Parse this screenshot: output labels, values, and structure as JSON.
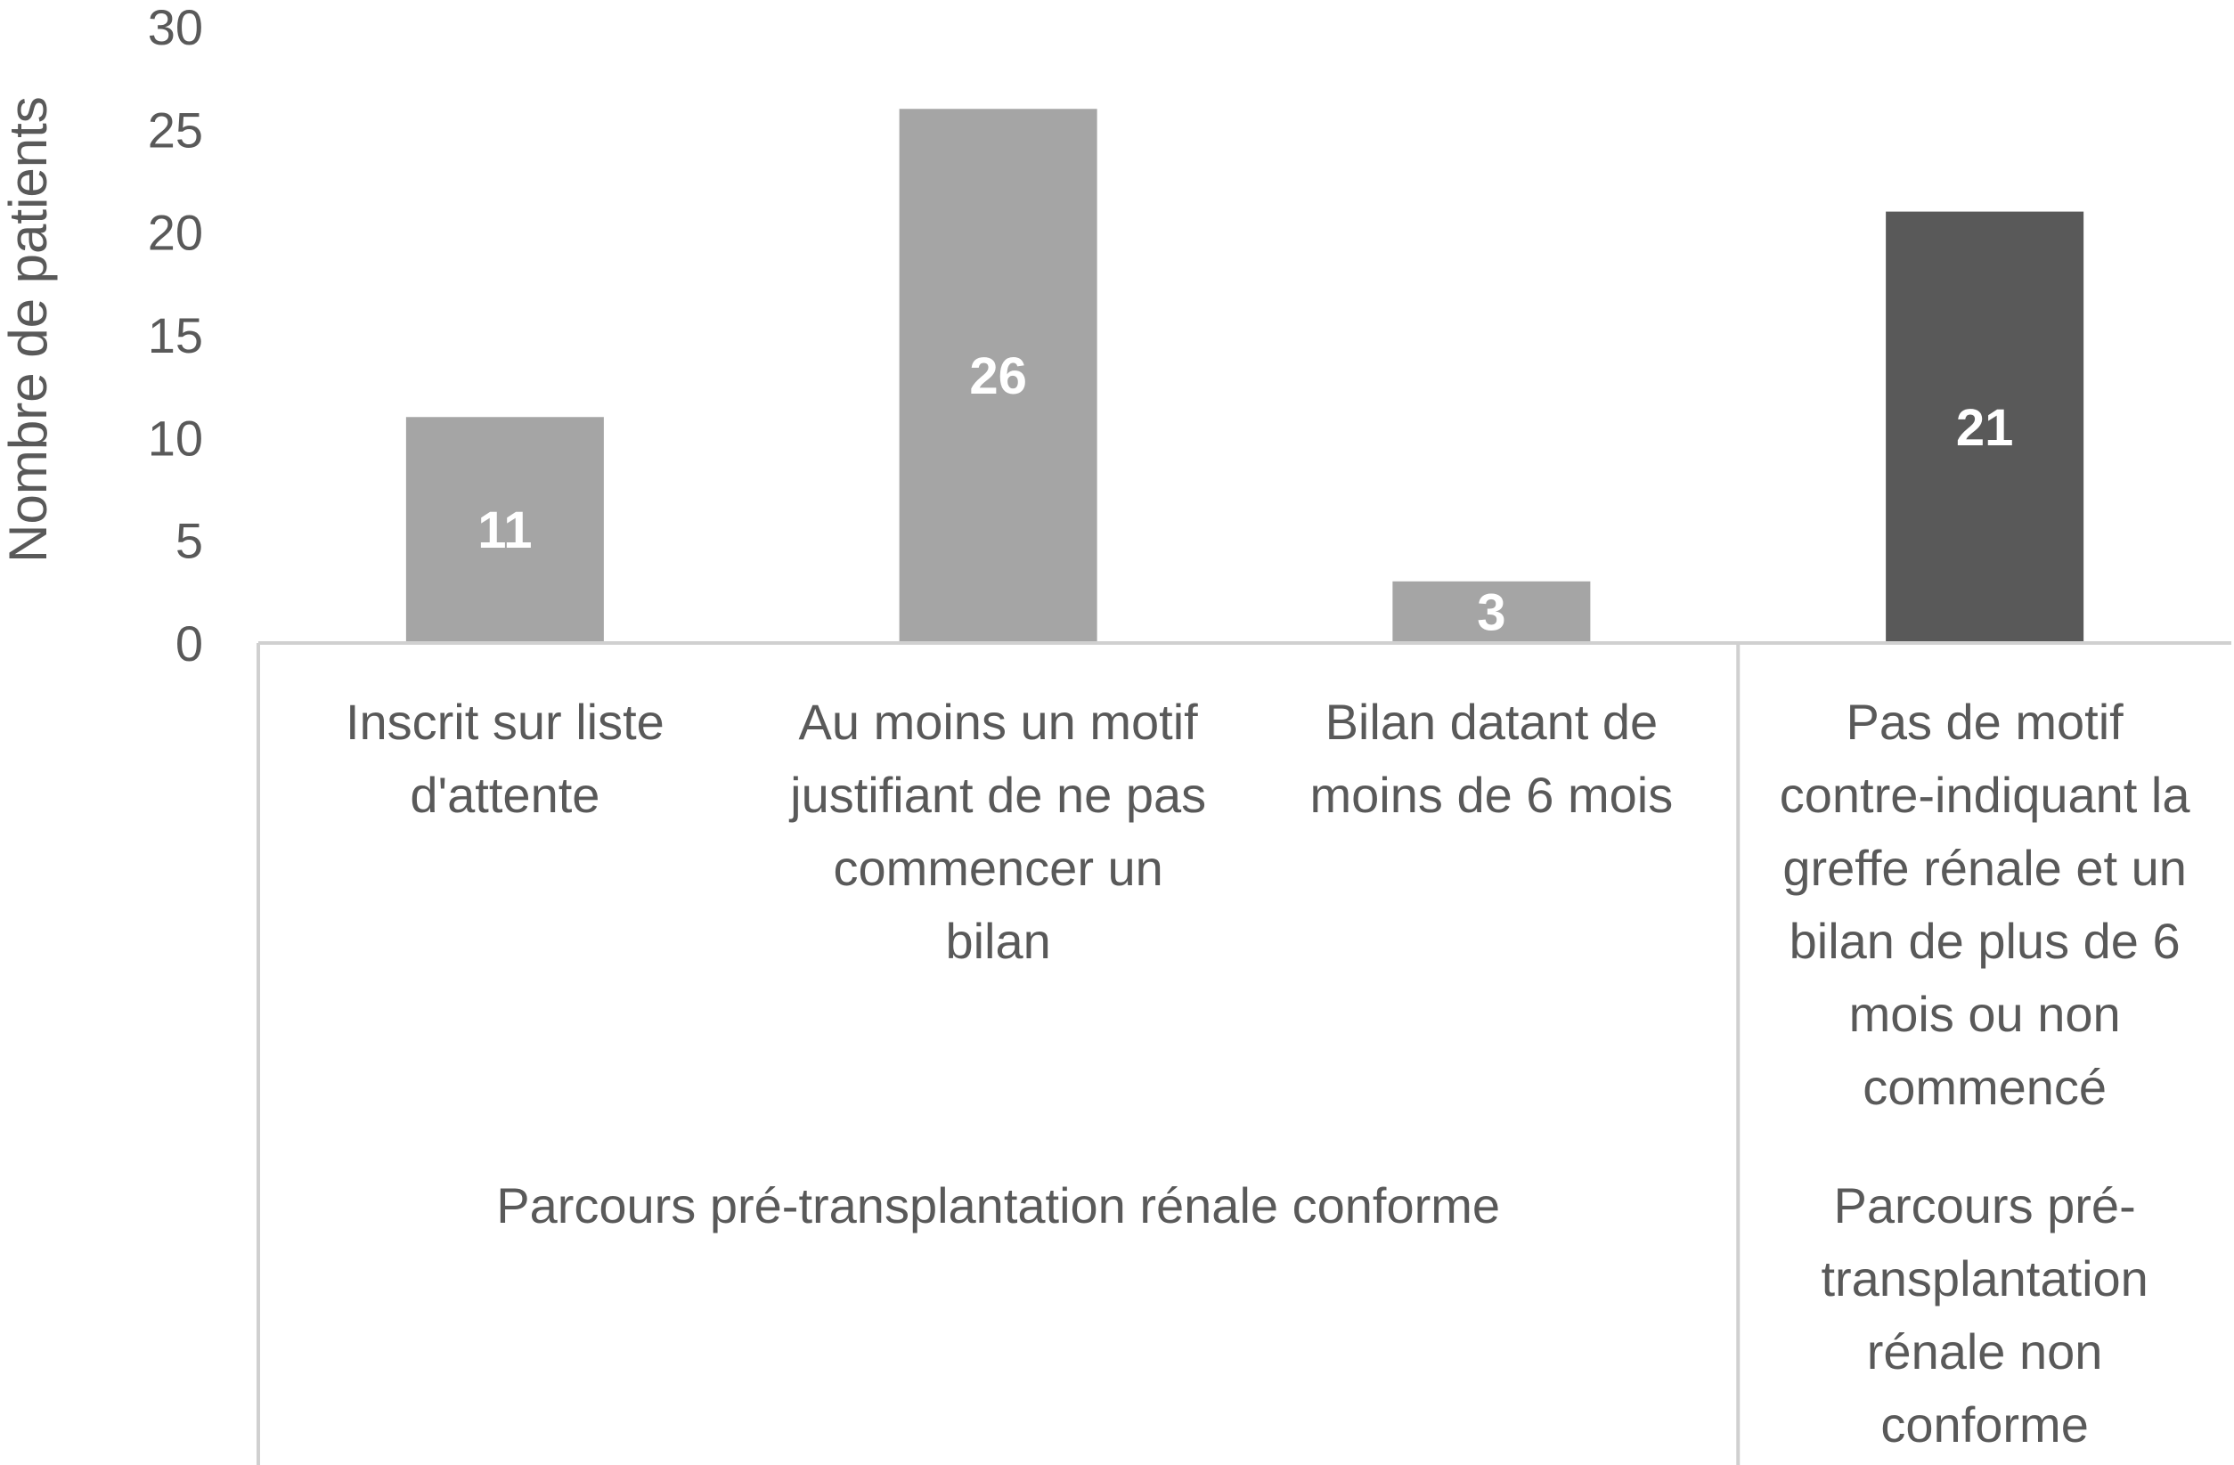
{
  "chart_data": {
    "type": "bar",
    "ylabel": "Nombre de patients",
    "ylim": [
      0,
      30
    ],
    "yticks": [
      0,
      5,
      10,
      15,
      20,
      25,
      30
    ],
    "grid": false,
    "categories": [
      "Inscrit sur liste d'attente",
      "Au moins un motif justifiant de ne pas commencer un bilan",
      "Bilan datant de moins de 6 mois",
      "Pas de motif contre-indiquant la greffe rénale et un bilan de plus de 6 mois ou non commencé"
    ],
    "category_lines": [
      [
        "Inscrit sur liste",
        "d'attente"
      ],
      [
        "Au moins un motif",
        "justifiant de ne pas",
        "commencer un",
        "bilan"
      ],
      [
        "Bilan datant de",
        "moins de 6 mois"
      ],
      [
        "Pas de motif",
        "contre-indiquant la",
        "greffe rénale et un",
        "bilan de plus de 6",
        "mois ou non",
        "commencé"
      ]
    ],
    "values": [
      11,
      26,
      3,
      21
    ],
    "data_labels": [
      "11",
      "26",
      "3",
      "21"
    ],
    "bar_colors": [
      "#a5a5a5",
      "#a5a5a5",
      "#a5a5a5",
      "#595959"
    ],
    "groups": [
      {
        "label": "Parcours pré-transplantation rénale conforme",
        "lines": [
          "Parcours pré-transplantation rénale conforme"
        ],
        "categories": [
          0,
          1,
          2
        ]
      },
      {
        "label": "Parcours pré-transplantation rénale non conforme",
        "lines": [
          "Parcours pré-",
          "transplantation",
          "rénale non",
          "conforme"
        ],
        "categories": [
          3
        ]
      }
    ]
  }
}
